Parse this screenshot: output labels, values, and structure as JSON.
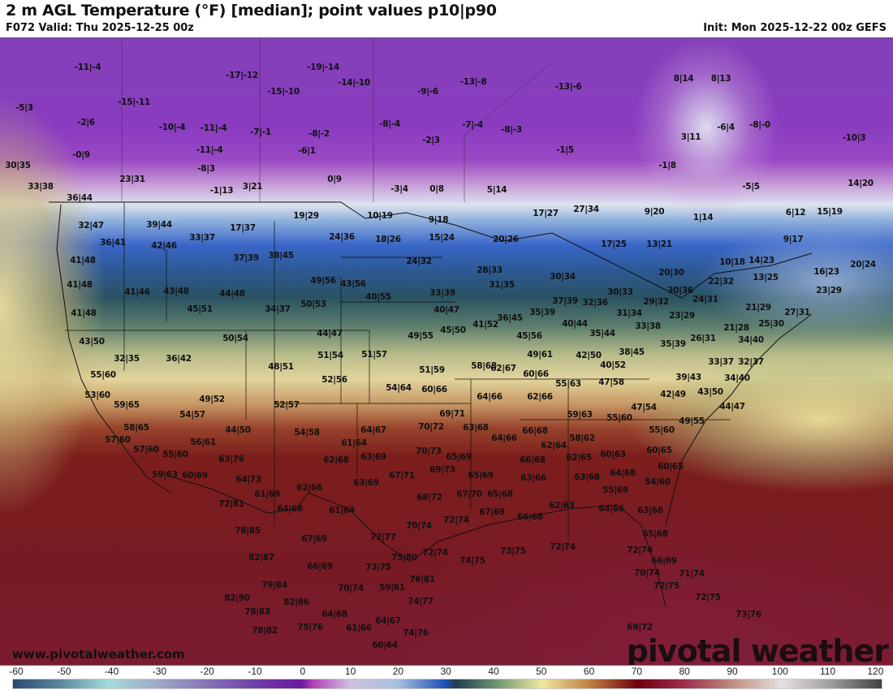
{
  "header": {
    "title": "2 m AGL Temperature (°F) [median]; point values p10|p90",
    "valid": "F072 Valid: Thu 2025-12-25 00z",
    "init": "Init: Mon 2025-12-22 00z GEFS"
  },
  "map": {
    "site": "www.pivotalweather.com",
    "watermark": "pivotal weather",
    "point_values": [
      "-11|-4",
      "-17|-12",
      "-19|-14",
      "-15|-10",
      "-14|-10",
      "-9|-6",
      "-13|-8",
      "-13|-6",
      "8|14",
      "8|13",
      "-5|3",
      "-15|-11",
      "-2|6",
      "-10|-4",
      "-11|-4",
      "-7|-1",
      "-8|-2",
      "-8|-4",
      "-7|-4",
      "-8|-3",
      "3|11",
      "-6|4",
      "-8|-0",
      "-10|3",
      "-0|9",
      "-11|-4",
      "-6|1",
      "-2|3",
      "-1|5",
      "-8|3",
      "-1|8",
      "30|35",
      "23|31",
      "0|9",
      "33|38",
      "-1|13",
      "3|21",
      "-3|4",
      "0|8",
      "5|14",
      "-5|5",
      "14|20",
      "36|44",
      "32|47",
      "39|44",
      "17|37",
      "19|29",
      "36|41",
      "42|46",
      "33|37",
      "41|48",
      "37|39",
      "38|45",
      "41|48",
      "41|46",
      "43|48",
      "44|48",
      "45|51",
      "34|37",
      "41|48",
      "43|50",
      "50|54",
      "32|35",
      "36|42",
      "48|51",
      "55|60",
      "53|60",
      "59|65",
      "49|52",
      "52|57",
      "54|57",
      "10|19",
      "9|18",
      "24|36",
      "18|26",
      "15|24",
      "20|26",
      "24|32",
      "49|56",
      "43|56",
      "40|55",
      "33|39",
      "31|35",
      "28|33",
      "40|47",
      "36|45",
      "41|52",
      "45|50",
      "49|55",
      "44|47",
      "45|56",
      "51|54",
      "51|57",
      "58|68",
      "62|67",
      "51|59",
      "52|56",
      "54|64",
      "60|66",
      "64|66",
      "50|53",
      "17|27",
      "27|34",
      "9|20",
      "1|14",
      "6|12",
      "15|19",
      "17|25",
      "13|21",
      "9|17",
      "10|18",
      "14|23",
      "20|24",
      "16|23",
      "20|30",
      "30|34",
      "13|25",
      "22|32",
      "30|36",
      "30|33",
      "23|29",
      "37|39",
      "32|36",
      "29|32",
      "24|31",
      "21|29",
      "27|31",
      "31|34",
      "23|29",
      "35|39",
      "40|44",
      "33|38",
      "25|30",
      "35|44",
      "21|28",
      "26|31",
      "34|40",
      "35|39",
      "49|61",
      "42|50",
      "38|45",
      "33|37",
      "32|37",
      "40|52",
      "60|66",
      "47|58",
      "39|43",
      "34|40",
      "55|63",
      "62|66",
      "42|49",
      "43|50",
      "44|47",
      "47|54",
      "59|63",
      "55|60",
      "49|55",
      "58|65",
      "57|60",
      "57|60",
      "55|60",
      "56|61",
      "44|50",
      "54|58",
      "59|63",
      "60|69",
      "63|76",
      "64|73",
      "61|69",
      "62|66",
      "64|68",
      "61|64",
      "72|81",
      "78|85",
      "67|69",
      "72|77",
      "82|87",
      "66|69",
      "73|75",
      "75|80",
      "79|84",
      "70|74",
      "59|61",
      "82|90",
      "82|86",
      "78|83",
      "64|68",
      "64|67",
      "78|82",
      "75|76",
      "61|66",
      "74|76",
      "60|64",
      "76|81",
      "74|77",
      "64|67",
      "61|64",
      "63|69",
      "62|68",
      "63|69",
      "67|71",
      "69|71",
      "70|72",
      "63|68",
      "64|66",
      "70|73",
      "65|69",
      "69|73",
      "65|69",
      "68|72",
      "67|70",
      "65|68",
      "67|69",
      "72|74",
      "70|74",
      "72|74",
      "74|75",
      "73|75",
      "72|74",
      "66|68",
      "63|66",
      "66|68",
      "62|64",
      "58|62",
      "62|65",
      "60|63",
      "63|68",
      "64|68",
      "55|69",
      "62|63",
      "66|68",
      "64|66",
      "63|68",
      "65|68",
      "72|74",
      "66|69",
      "70|74",
      "71|74",
      "72|75",
      "72|75",
      "69|72",
      "73|76",
      "60|65",
      "60|65",
      "54|60",
      "55|60"
    ]
  },
  "colorbar": {
    "ticks": [
      "-60",
      "-50",
      "-40",
      "-30",
      "-20",
      "-10",
      "0",
      "10",
      "20",
      "30",
      "40",
      "50",
      "60",
      "70",
      "80",
      "90",
      "100",
      "110",
      "120"
    ]
  }
}
